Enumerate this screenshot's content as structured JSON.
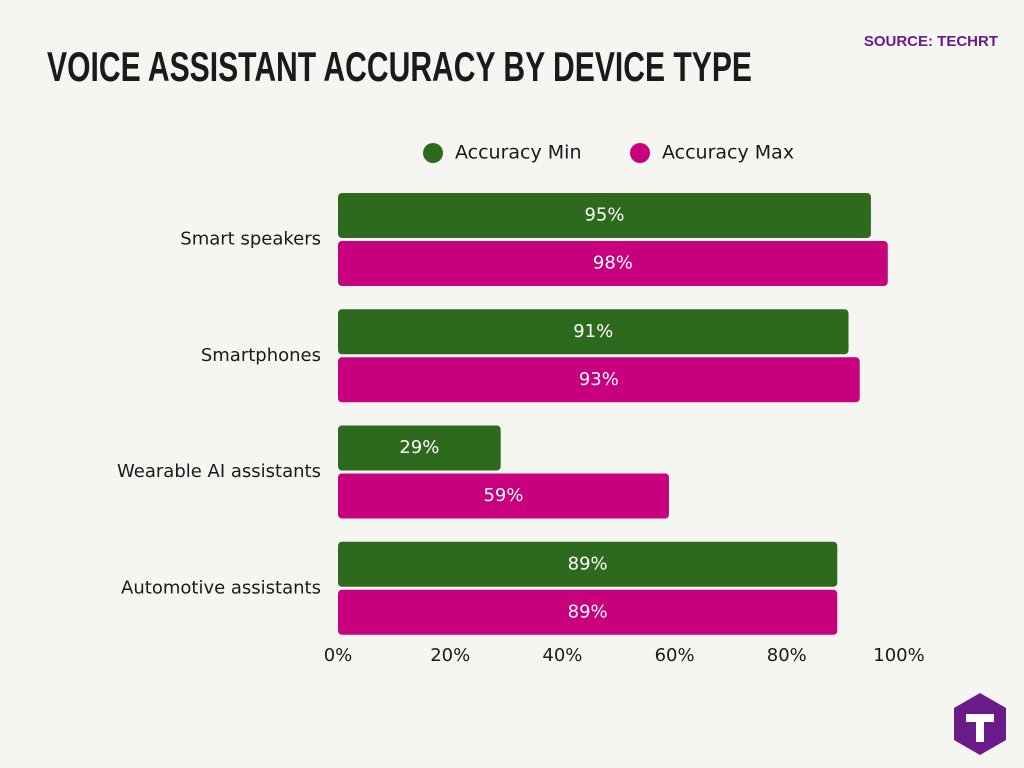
{
  "chart_data": {
    "type": "hbar",
    "title": "VOICE ASSISTANT ACCURACY BY DEVICE TYPE",
    "source": "SOURCE: TECHRT",
    "categories": [
      "Smart speakers",
      "Smartphones",
      "Wearable AI assistants",
      "Automotive assistants"
    ],
    "series": [
      {
        "name": "Accuracy Min",
        "color": "#2e6a1e",
        "values": [
          95,
          91,
          29,
          89
        ],
        "value_labels": [
          "95%",
          "91%",
          "29%",
          "89%"
        ]
      },
      {
        "name": "Accuracy Max",
        "color": "#c8007e",
        "values": [
          98,
          93,
          59,
          89
        ],
        "value_labels": [
          "98%",
          "93%",
          "59%",
          "89%"
        ]
      }
    ],
    "xlim": [
      0,
      100
    ],
    "xticks": [
      {
        "value": 0,
        "label": "0%"
      },
      {
        "value": 20,
        "label": "20%"
      },
      {
        "value": 40,
        "label": "40%"
      },
      {
        "value": 60,
        "label": "60%"
      },
      {
        "value": 80,
        "label": "80%"
      },
      {
        "value": 100,
        "label": "100%"
      }
    ],
    "legend": "top"
  }
}
